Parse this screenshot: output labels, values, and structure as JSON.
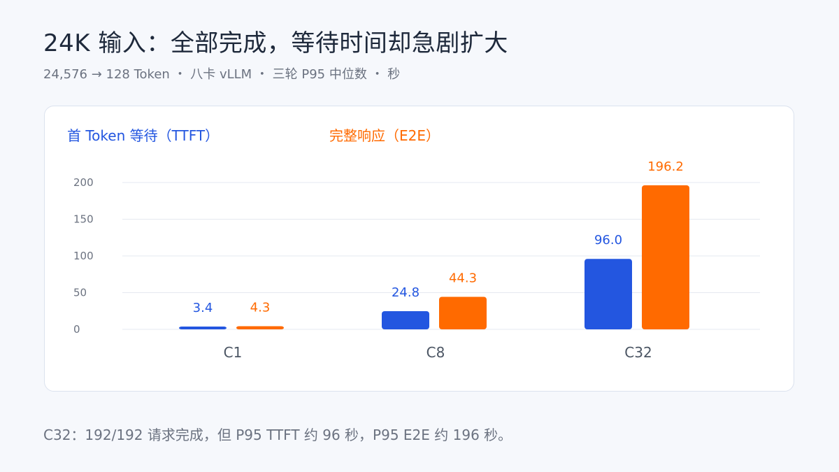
{
  "title": "24K 输入：全部完成，等待时间却急剧扩大",
  "subtitle": "24,576 → 128 Token ・ 八卡 vLLM ・ 三轮 P95 中位数 ・ 秒",
  "note": "C32：192/192 请求完成，但 P95 TTFT 约 96 秒，P95 E2E 约 196 秒。",
  "colors": {
    "ttft": "#2356e0",
    "e2e": "#ff6a00",
    "grid": "#e5e9f0",
    "axis_text": "#6b7280"
  },
  "chart_data": {
    "type": "bar",
    "categories": [
      "C1",
      "C8",
      "C32"
    ],
    "series": [
      {
        "name": "首 Token 等待（TTFT）",
        "values": [
          3.4,
          24.8,
          96.0
        ],
        "labels": [
          "3.4",
          "24.8",
          "96.0"
        ]
      },
      {
        "name": "完整响应（E2E）",
        "values": [
          4.3,
          44.3,
          196.2
        ],
        "labels": [
          "4.3",
          "44.3",
          "196.2"
        ]
      }
    ],
    "yticks": [
      "0",
      "50",
      "100",
      "150",
      "200"
    ],
    "ylim": [
      0,
      200
    ],
    "grid": true,
    "legend": "top-left"
  }
}
